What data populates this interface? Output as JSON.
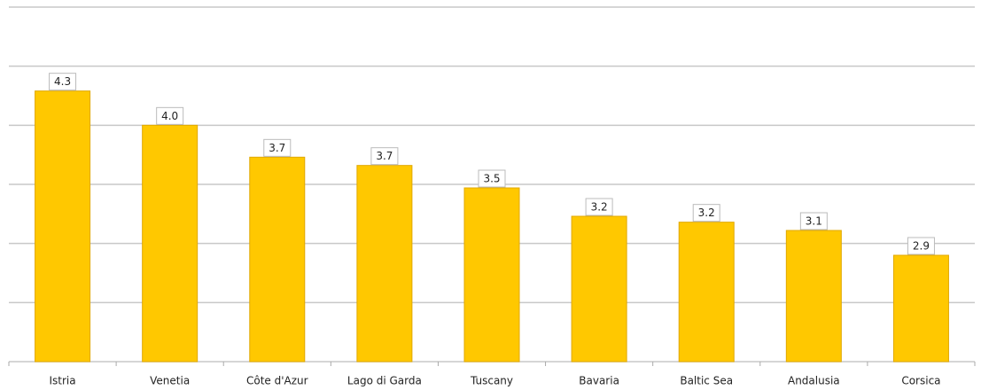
{
  "chart_data": {
    "type": "bar",
    "categories": [
      "Istria",
      "Venetia",
      "Côte d'Azur",
      "Lago di Garda",
      "Tuscany",
      "Bavaria",
      "Baltic Sea",
      "Andalusia",
      "Corsica"
    ],
    "values": [
      4.29,
      4.0,
      3.73,
      3.66,
      3.47,
      3.23,
      3.18,
      3.11,
      2.9
    ],
    "value_labels": [
      "4.3",
      "4.0",
      "3.7",
      "3.7",
      "3.5",
      "3.2",
      "3.2",
      "3.1",
      "2.9"
    ],
    "color": "#ffc800",
    "ylim": [
      2,
      5
    ],
    "yticks": [
      2,
      2.5,
      3,
      3.5,
      4,
      4.5,
      5
    ],
    "grid": true
  }
}
